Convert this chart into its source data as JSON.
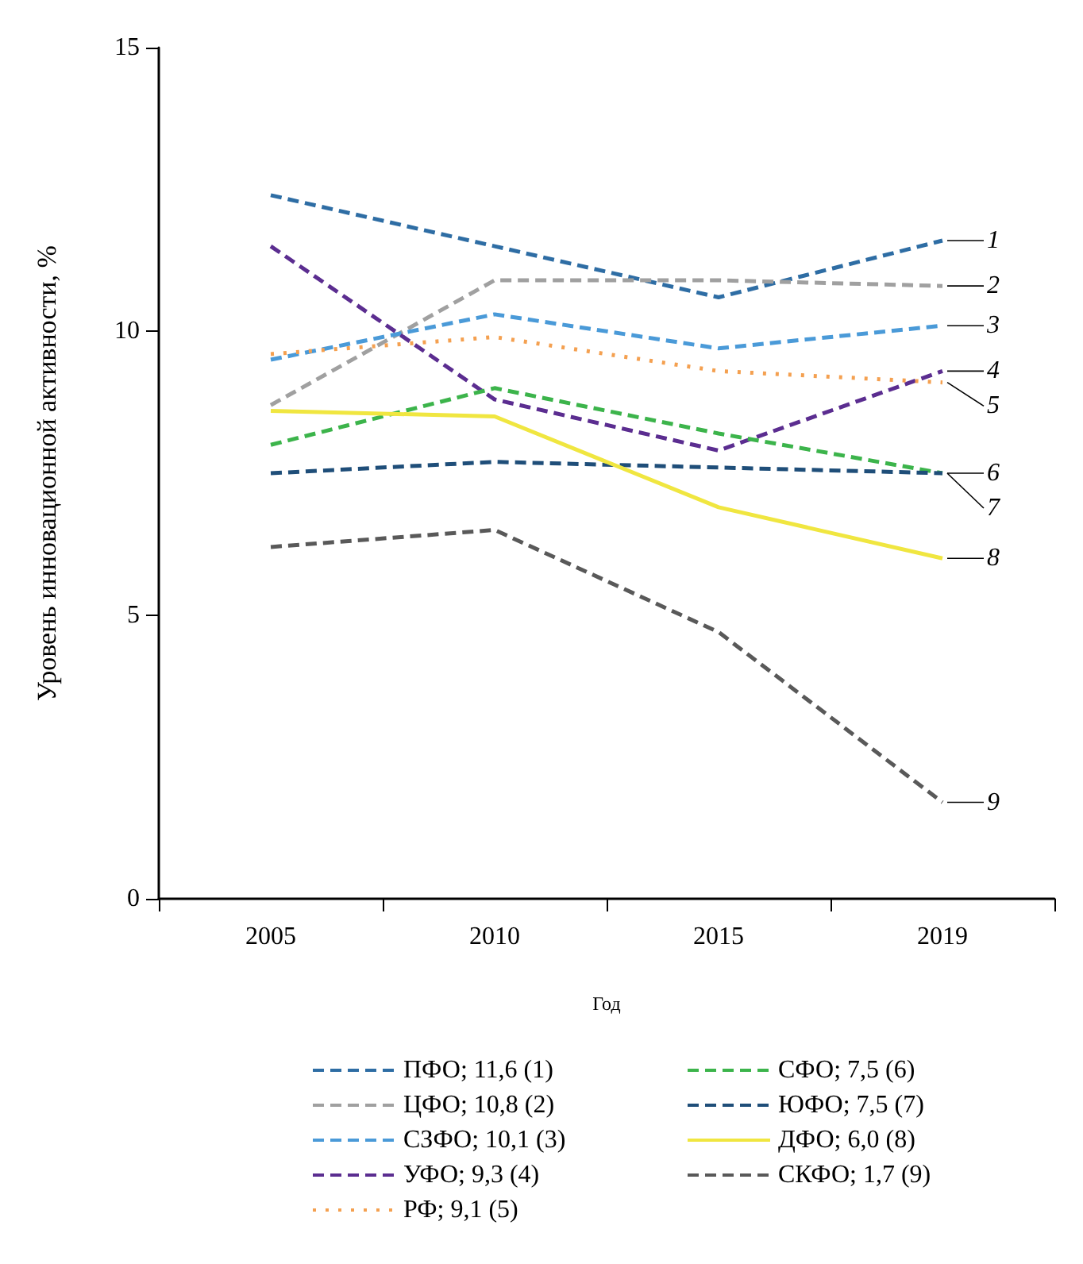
{
  "chart_data": {
    "type": "line",
    "xlabel": "Год",
    "ylabel": "Уровень инновационной активности, %",
    "categories": [
      "2005",
      "2010",
      "2015",
      "2019"
    ],
    "series": [
      {
        "name": "ПФО; 11,6 (1)",
        "color": "#2e6da4",
        "line_style": "dashed",
        "values": [
          12.4,
          11.5,
          10.6,
          11.6
        ]
      },
      {
        "name": "ЦФО; 10,8 (2)",
        "color": "#a0a0a0",
        "line_style": "dashed",
        "values": [
          8.7,
          10.9,
          10.9,
          10.8
        ]
      },
      {
        "name": "СЗФО; 10,1 (3)",
        "color": "#4a9ad8",
        "line_style": "dashed",
        "values": [
          9.5,
          10.3,
          9.7,
          10.1
        ]
      },
      {
        "name": "УФО; 9,3 (4)",
        "color": "#5b2d90",
        "line_style": "dashed",
        "values": [
          11.5,
          8.8,
          7.9,
          9.3
        ]
      },
      {
        "name": "РФ; 9,1 (5)",
        "color": "#f4a050",
        "line_style": "dotted",
        "values": [
          9.6,
          9.9,
          9.3,
          9.1
        ]
      },
      {
        "name": "СФО; 7,5 (6)",
        "color": "#3cb44b",
        "line_style": "dashed",
        "values": [
          8.0,
          9.0,
          8.2,
          7.5
        ]
      },
      {
        "name": "ЮФО; 7,5 (7)",
        "color": "#1f4e79",
        "line_style": "dashed",
        "values": [
          7.5,
          7.7,
          7.6,
          7.5
        ]
      },
      {
        "name": "ДФО; 6,0 (8)",
        "color": "#f0e640",
        "line_style": "solid",
        "values": [
          8.6,
          8.5,
          6.9,
          6.0
        ]
      },
      {
        "name": "СКФО; 1,7 (9)",
        "color": "#595959",
        "line_style": "dashed",
        "values": [
          6.2,
          6.5,
          4.7,
          1.7
        ]
      }
    ],
    "annotations": [
      {
        "text": "1",
        "x": "2019",
        "y": 11.6
      },
      {
        "text": "2",
        "x": "2019",
        "y": 10.8
      },
      {
        "text": "3",
        "x": "2019",
        "y": 10.1
      },
      {
        "text": "4",
        "x": "2019",
        "y": 9.3
      },
      {
        "text": "5",
        "x": "2019",
        "y": 9.1
      },
      {
        "text": "6",
        "x": "2019",
        "y": 7.5
      },
      {
        "text": "7",
        "x": "2019",
        "y": 7.5
      },
      {
        "text": "8",
        "x": "2019",
        "y": 6.0
      },
      {
        "text": "9",
        "x": "2019",
        "y": 1.7
      }
    ],
    "ylim": [
      0,
      15
    ],
    "yticks": [
      0,
      5,
      10,
      15
    ],
    "grid": false,
    "legend": "bottom",
    "marker": "none"
  }
}
